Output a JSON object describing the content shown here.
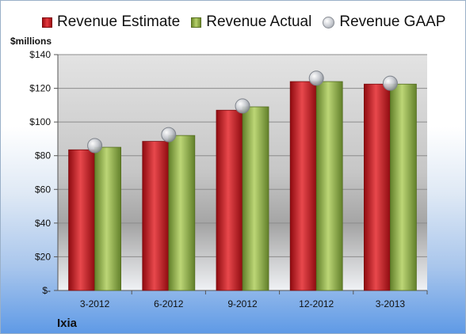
{
  "chart_data": {
    "type": "bar",
    "categories": [
      "3-2012",
      "6-2012",
      "9-2012",
      "12-2012",
      "3-2013"
    ],
    "series": [
      {
        "name": "Revenue Estimate",
        "kind": "bar",
        "color": "#d22a2f",
        "values": [
          83.5,
          88.5,
          107,
          124,
          122.5
        ]
      },
      {
        "name": "Revenue Actual",
        "kind": "bar",
        "color": "#9bbb59",
        "values": [
          85,
          92,
          109,
          124,
          122.5
        ]
      },
      {
        "name": "Revenue GAAP",
        "kind": "marker",
        "color": "#c0c3c8",
        "values": [
          86,
          92.5,
          109.5,
          126,
          123
        ]
      }
    ],
    "ylabel": "$millions",
    "ylim": [
      0,
      140
    ],
    "yticks": [
      0,
      20,
      40,
      60,
      80,
      100,
      120,
      140
    ],
    "ytick_labels": [
      "$-",
      "$20",
      "$40",
      "$60",
      "$80",
      "$100",
      "$120",
      "$140"
    ],
    "grid": true,
    "legend_position": "top"
  },
  "footer": {
    "company": "Ixia"
  }
}
